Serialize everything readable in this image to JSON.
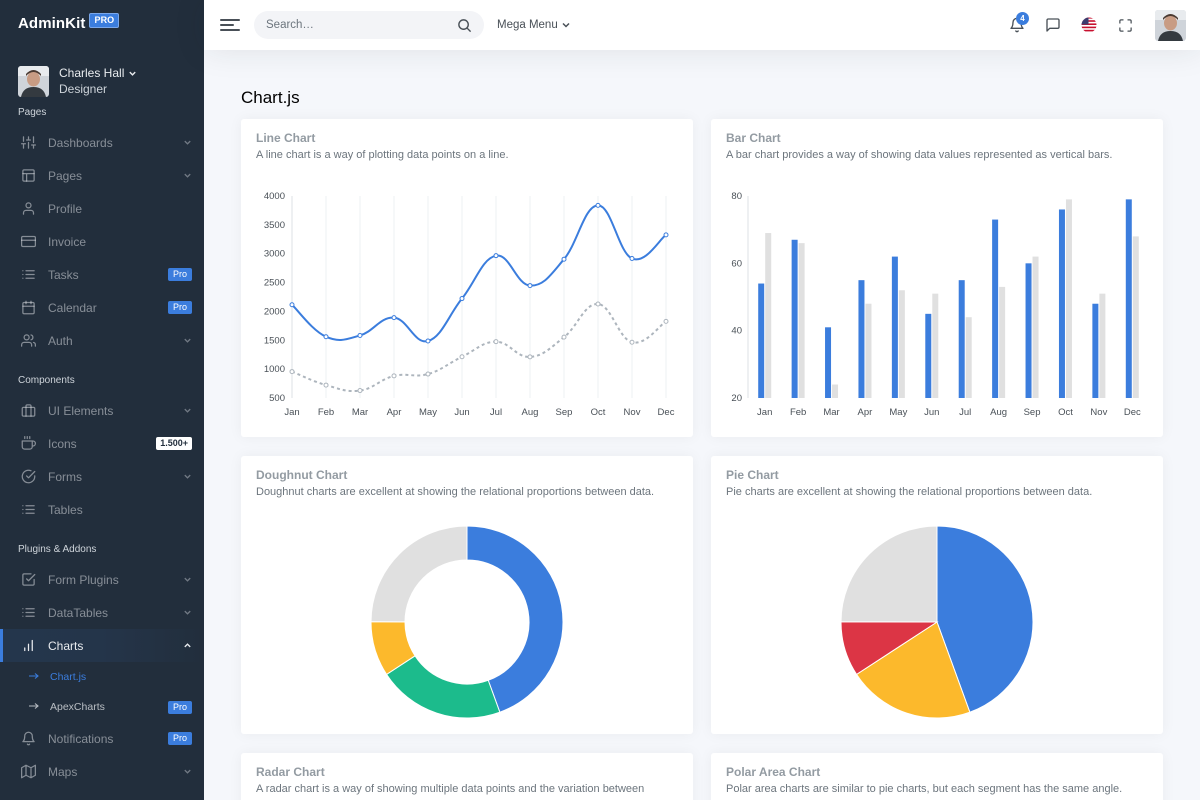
{
  "brand": {
    "name": "AdminKit",
    "badge": "PRO"
  },
  "user": {
    "name": "Charles Hall",
    "role": "Designer"
  },
  "sidebar": {
    "sections": [
      {
        "header": "Pages",
        "items": [
          {
            "label": "Dashboards",
            "icon": "sliders-icon",
            "trail": "chevron"
          },
          {
            "label": "Pages",
            "icon": "layout-icon",
            "trail": "chevron"
          },
          {
            "label": "Profile",
            "icon": "user-icon",
            "trail": ""
          },
          {
            "label": "Invoice",
            "icon": "credit-card-icon",
            "trail": ""
          },
          {
            "label": "Tasks",
            "icon": "list-icon",
            "trail": "Pro"
          },
          {
            "label": "Calendar",
            "icon": "calendar-icon",
            "trail": "Pro"
          },
          {
            "label": "Auth",
            "icon": "users-icon",
            "trail": "chevron"
          }
        ]
      },
      {
        "header": "Components",
        "items": [
          {
            "label": "UI Elements",
            "icon": "briefcase-icon",
            "trail": "chevron"
          },
          {
            "label": "Icons",
            "icon": "coffee-icon",
            "trail": "1.500+"
          },
          {
            "label": "Forms",
            "icon": "check-circle-icon",
            "trail": "chevron"
          },
          {
            "label": "Tables",
            "icon": "list-icon",
            "trail": ""
          }
        ]
      },
      {
        "header": "Plugins & Addons",
        "items": [
          {
            "label": "Form Plugins",
            "icon": "check-square-icon",
            "trail": "chevron"
          },
          {
            "label": "DataTables",
            "icon": "list-icon",
            "trail": "chevron"
          },
          {
            "label": "Charts",
            "icon": "bar-chart-icon",
            "trail": "chevron-up",
            "active": true,
            "children": [
              {
                "label": "Chart.js",
                "active": true,
                "badge": ""
              },
              {
                "label": "ApexCharts",
                "active": false,
                "badge": "Pro"
              }
            ]
          },
          {
            "label": "Notifications",
            "icon": "bell-icon",
            "trail": "Pro"
          },
          {
            "label": "Maps",
            "icon": "map-icon",
            "trail": "chevron"
          }
        ]
      }
    ]
  },
  "topbar": {
    "search_placeholder": "Search…",
    "mega_menu": "Mega Menu",
    "notification_count": "4"
  },
  "page": {
    "title": "Chart.js"
  },
  "cards": {
    "line": {
      "title": "Line Chart",
      "subtitle": "A line chart is a way of plotting data points on a line."
    },
    "bar": {
      "title": "Bar Chart",
      "subtitle": "A bar chart provides a way of showing data values represented as vertical bars."
    },
    "doughnut": {
      "title": "Doughnut Chart",
      "subtitle": "Doughnut charts are excellent at showing the relational proportions between data."
    },
    "pie": {
      "title": "Pie Chart",
      "subtitle": "Pie charts are excellent at showing the relational proportions between data."
    },
    "radar": {
      "title": "Radar Chart",
      "subtitle": "A radar chart is a way of showing multiple data points and the variation between"
    },
    "polar": {
      "title": "Polar Area Chart",
      "subtitle": "Polar area charts are similar to pie charts, but each segment has the same angle."
    }
  },
  "colors": {
    "primary": "#3b7ddd",
    "warning": "#fcb92c",
    "danger": "#dc3545",
    "success": "#1cbb8c",
    "light": "#e0e0e0",
    "gray": "#adb5bd"
  },
  "chart_data": [
    {
      "id": "line",
      "type": "line",
      "categories": [
        "Jan",
        "Feb",
        "Mar",
        "Apr",
        "May",
        "Jun",
        "Jul",
        "Aug",
        "Sep",
        "Oct",
        "Nov",
        "Dec"
      ],
      "series": [
        {
          "values": [
            2115,
            1562,
            1584,
            1892,
            1487,
            2223,
            2966,
            2448,
            2905,
            3838,
            2917,
            3327
          ],
          "color": "#3b7ddd",
          "style": "solid"
        },
        {
          "values": [
            958,
            724,
            629,
            883,
            915,
            1214,
            1476,
            1212,
            1554,
            2128,
            1466,
            1827
          ],
          "color": "#adb5bd",
          "style": "dashed"
        }
      ],
      "yticks": [
        500,
        1000,
        1500,
        2000,
        2500,
        3000,
        3500,
        4000
      ],
      "ylim": [
        500,
        4000
      ],
      "grid": "vertical"
    },
    {
      "id": "bar",
      "type": "bar",
      "categories": [
        "Jan",
        "Feb",
        "Mar",
        "Apr",
        "May",
        "Jun",
        "Jul",
        "Aug",
        "Sep",
        "Oct",
        "Nov",
        "Dec"
      ],
      "series": [
        {
          "values": [
            54,
            67,
            41,
            55,
            62,
            45,
            55,
            73,
            60,
            76,
            48,
            79
          ],
          "color": "#3b7ddd"
        },
        {
          "values": [
            69,
            66,
            24,
            48,
            52,
            51,
            44,
            53,
            62,
            79,
            51,
            68
          ],
          "color": "#e0e0e0"
        }
      ],
      "yticks": [
        20,
        40,
        60,
        80
      ],
      "ylim": [
        20,
        80
      ]
    },
    {
      "id": "doughnut",
      "type": "doughnut",
      "values": [
        260,
        125,
        54,
        146
      ],
      "colors": [
        "#3b7ddd",
        "#1cbb8c",
        "#fcb92c",
        "#e0e0e0"
      ]
    },
    {
      "id": "pie",
      "type": "pie",
      "values": [
        260,
        125,
        54,
        146
      ],
      "colors": [
        "#3b7ddd",
        "#fcb92c",
        "#dc3545",
        "#e0e0e0"
      ]
    }
  ]
}
